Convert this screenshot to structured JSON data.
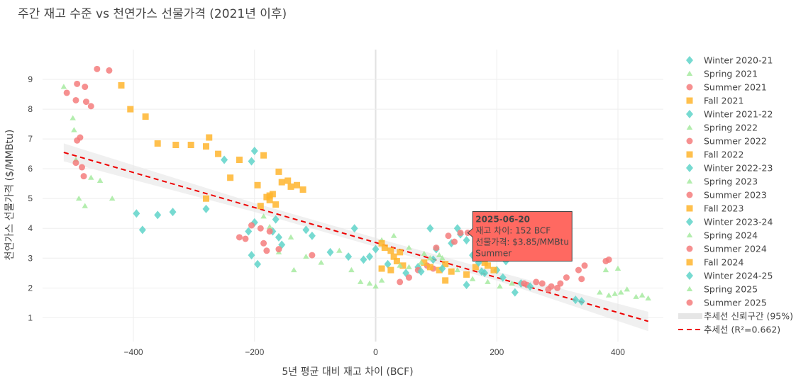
{
  "title": "주간 재고 수준 vs 천연가스 선물가격 (2021년 이후)",
  "chart_data": {
    "type": "scatter",
    "title": "주간 재고 수준 vs 천연가스 선물가격 (2021년 이후)",
    "xlabel": "5년 평균 대비 재고 차이 (BCF)",
    "ylabel": "천연가스 선물가격 ($/MMBtu)",
    "xlim": [
      -550,
      475
    ],
    "ylim": [
      0.2,
      10.0
    ],
    "x_ticks": [
      -400,
      -200,
      0,
      200,
      400
    ],
    "y_ticks": [
      1,
      2,
      3,
      4,
      5,
      6,
      7,
      8,
      9
    ],
    "x_tick_labels": [
      "−400",
      "−200",
      "0",
      "200",
      "400"
    ],
    "grid": true,
    "legend_position": "right",
    "season_styles": {
      "Winter": {
        "color": "#5fd3c9",
        "marker": "diamond"
      },
      "Spring": {
        "color": "#a6eaa0",
        "marker": "triangle"
      },
      "Summer": {
        "color": "#f47c7c",
        "marker": "circle"
      },
      "Fall": {
        "color": "#ffb52e",
        "marker": "square"
      }
    },
    "series": [
      {
        "name": "Winter 2020-21",
        "season": "Winter",
        "points": [
          [
            -395,
            4.5
          ],
          [
            -385,
            3.95
          ],
          [
            -360,
            4.45
          ],
          [
            -335,
            4.55
          ]
        ]
      },
      {
        "name": "Spring 2021",
        "season": "Spring",
        "points": [
          [
            -515,
            8.75
          ],
          [
            -500,
            7.7
          ],
          [
            -498,
            7.3
          ],
          [
            -495,
            6.3
          ],
          [
            -490,
            5.0
          ],
          [
            -480,
            4.75
          ],
          [
            -470,
            5.7
          ],
          [
            -455,
            5.6
          ],
          [
            -435,
            5.0
          ]
        ]
      },
      {
        "name": "Summer 2021",
        "season": "Summer",
        "points": [
          [
            -510,
            8.55
          ],
          [
            -495,
            8.3
          ],
          [
            -493,
            8.85
          ],
          [
            -480,
            8.75
          ],
          [
            -478,
            8.25
          ],
          [
            -470,
            8.1
          ],
          [
            -460,
            9.35
          ],
          [
            -440,
            9.3
          ],
          [
            -493,
            6.95
          ],
          [
            -488,
            7.05
          ],
          [
            -485,
            6.05
          ],
          [
            -482,
            5.75
          ],
          [
            -495,
            6.2
          ]
        ]
      },
      {
        "name": "Fall 2021",
        "season": "Fall",
        "points": [
          [
            -420,
            8.8
          ],
          [
            -405,
            8.0
          ],
          [
            -380,
            7.75
          ],
          [
            -360,
            6.85
          ],
          [
            -330,
            6.8
          ],
          [
            -305,
            6.8
          ],
          [
            -280,
            6.75
          ],
          [
            -275,
            7.05
          ],
          [
            -260,
            6.5
          ],
          [
            -240,
            5.7
          ],
          [
            -280,
            5.0
          ],
          [
            -225,
            6.3
          ],
          [
            -195,
            5.45
          ],
          [
            -190,
            4.75
          ]
        ]
      },
      {
        "name": "Winter 2021-22",
        "season": "Winter",
        "points": [
          [
            -280,
            4.65
          ],
          [
            -250,
            6.3
          ],
          [
            -205,
            6.25
          ],
          [
            -200,
            6.6
          ],
          [
            -200,
            4.2
          ],
          [
            -210,
            3.9
          ],
          [
            -205,
            3.1
          ],
          [
            -195,
            2.8
          ],
          [
            -170,
            3.9
          ],
          [
            -165,
            4.3
          ],
          [
            -160,
            3.7
          ],
          [
            -155,
            3.45
          ],
          [
            -115,
            3.95
          ],
          [
            -105,
            3.75
          ],
          [
            -75,
            3.2
          ],
          [
            -45,
            3.05
          ],
          [
            -35,
            4.0
          ],
          [
            -20,
            2.95
          ],
          [
            -10,
            3.05
          ]
        ]
      },
      {
        "name": "Spring 2022",
        "season": "Spring",
        "points": [
          [
            -185,
            4.4
          ],
          [
            -175,
            4.05
          ],
          [
            -160,
            3.2
          ],
          [
            -140,
            3.7
          ],
          [
            -115,
            3.05
          ],
          [
            -90,
            2.85
          ],
          [
            -60,
            3.25
          ],
          [
            -40,
            2.6
          ],
          [
            -25,
            2.2
          ],
          [
            -10,
            2.15
          ],
          [
            0,
            2.05
          ],
          [
            10,
            2.25
          ],
          [
            -135,
            2.6
          ]
        ]
      },
      {
        "name": "Summer 2022",
        "season": "Summer",
        "points": [
          [
            -225,
            3.7
          ],
          [
            -215,
            3.65
          ],
          [
            -205,
            4.1
          ],
          [
            -190,
            4.0
          ],
          [
            -185,
            3.5
          ],
          [
            -180,
            3.25
          ],
          [
            -175,
            3.9
          ],
          [
            -160,
            3.3
          ],
          [
            -105,
            3.1
          ]
        ]
      },
      {
        "name": "Fall 2022",
        "season": "Fall",
        "points": [
          [
            -185,
            6.45
          ],
          [
            -160,
            5.9
          ],
          [
            -155,
            5.55
          ],
          [
            -145,
            5.6
          ],
          [
            -140,
            5.4
          ],
          [
            -130,
            5.45
          ],
          [
            -120,
            5.3
          ],
          [
            -175,
            5.1
          ],
          [
            -170,
            5.15
          ],
          [
            -165,
            4.8
          ],
          [
            -180,
            5.05
          ],
          [
            -175,
            4.95
          ]
        ]
      },
      {
        "name": "Winter 2022-23",
        "season": "Winter",
        "points": [
          [
            0,
            3.3
          ],
          [
            20,
            2.8
          ],
          [
            50,
            2.5
          ],
          [
            70,
            2.7
          ],
          [
            90,
            4.0
          ],
          [
            100,
            3.3
          ],
          [
            125,
            3.5
          ],
          [
            135,
            4.0
          ],
          [
            150,
            2.1
          ],
          [
            175,
            2.55
          ],
          [
            200,
            2.6
          ],
          [
            215,
            2.9
          ],
          [
            230,
            1.85
          ]
        ]
      },
      {
        "name": "Spring 2023",
        "season": "Spring",
        "points": [
          [
            10,
            3.6
          ],
          [
            30,
            3.75
          ],
          [
            55,
            3.35
          ],
          [
            80,
            3.15
          ],
          [
            110,
            3.0
          ],
          [
            135,
            2.6
          ],
          [
            160,
            2.3
          ],
          [
            185,
            2.2
          ],
          [
            205,
            2.05
          ],
          [
            225,
            2.15
          ]
        ]
      },
      {
        "name": "Summer 2023",
        "season": "Summer",
        "points": [
          [
            40,
            2.2
          ],
          [
            55,
            2.35
          ],
          [
            70,
            2.6
          ],
          [
            85,
            2.75
          ],
          [
            95,
            2.65
          ],
          [
            130,
            3.55
          ],
          [
            250,
            2.1
          ],
          [
            265,
            2.2
          ],
          [
            275,
            2.15
          ],
          [
            290,
            2.05
          ]
        ]
      },
      {
        "name": "Fall 2023",
        "season": "Fall",
        "points": [
          [
            10,
            3.5
          ],
          [
            15,
            3.35
          ],
          [
            25,
            3.25
          ],
          [
            30,
            3.05
          ],
          [
            35,
            2.9
          ],
          [
            40,
            3.2
          ],
          [
            45,
            2.75
          ],
          [
            10,
            2.65
          ],
          [
            25,
            2.6
          ],
          [
            80,
            2.85
          ],
          [
            90,
            2.7
          ],
          [
            105,
            2.6
          ],
          [
            115,
            2.8
          ],
          [
            115,
            2.25
          ],
          [
            125,
            2.55
          ],
          [
            150,
            2.45
          ],
          [
            165,
            2.7
          ],
          [
            180,
            2.85
          ]
        ]
      },
      {
        "name": "Winter 2023-24",
        "season": "Winter",
        "points": [
          [
            140,
            3.8
          ],
          [
            150,
            3.6
          ],
          [
            160,
            3.1
          ],
          [
            170,
            2.85
          ],
          [
            180,
            2.5
          ],
          [
            210,
            2.35
          ],
          [
            240,
            2.15
          ],
          [
            255,
            2.05
          ]
        ]
      },
      {
        "name": "Spring 2024",
        "season": "Spring",
        "points": [
          [
            370,
            1.85
          ],
          [
            385,
            1.75
          ],
          [
            395,
            1.8
          ],
          [
            405,
            1.85
          ],
          [
            415,
            1.95
          ],
          [
            430,
            1.7
          ],
          [
            440,
            1.75
          ],
          [
            450,
            1.65
          ],
          [
            380,
            2.6
          ],
          [
            400,
            2.65
          ]
        ]
      },
      {
        "name": "Summer 2024",
        "season": "Summer",
        "points": [
          [
            285,
            1.95
          ],
          [
            300,
            2.0
          ],
          [
            305,
            2.15
          ],
          [
            315,
            2.35
          ],
          [
            335,
            2.6
          ],
          [
            345,
            2.75
          ],
          [
            380,
            2.9
          ],
          [
            385,
            2.95
          ],
          [
            340,
            2.3
          ],
          [
            245,
            2.15
          ]
        ]
      },
      {
        "name": "Fall 2024",
        "season": "Fall",
        "points": [
          [
            185,
            2.75
          ],
          [
            195,
            2.6
          ]
        ]
      },
      {
        "name": "Winter 2024-25",
        "season": "Winter",
        "points": [
          [
            75,
            2.55
          ],
          [
            95,
            2.95
          ],
          [
            110,
            2.65
          ],
          [
            330,
            1.6
          ],
          [
            340,
            1.55
          ]
        ]
      },
      {
        "name": "Spring 2025",
        "season": "Spring",
        "points": [
          [
            40,
            2.75
          ],
          [
            55,
            2.7
          ],
          [
            75,
            2.85
          ],
          [
            90,
            3.0
          ],
          [
            105,
            3.1
          ]
        ]
      },
      {
        "name": "Summer 2025",
        "season": "Summer",
        "points": [
          [
            100,
            3.35
          ],
          [
            120,
            3.75
          ],
          [
            140,
            3.85
          ],
          [
            152,
            3.85
          ],
          [
            165,
            3.55
          ]
        ]
      }
    ],
    "trendline": {
      "name": "추세선 (R²=0.662)",
      "x": [
        -515,
        450
      ],
      "y": [
        6.55,
        0.88
      ],
      "color": "#ee0000"
    },
    "confidence_band": {
      "name": "추세선 신뢰구간 (95%)",
      "x": [
        -515,
        -200,
        0,
        200,
        450
      ],
      "y_upper": [
        6.85,
        4.85,
        3.68,
        2.55,
        1.2
      ],
      "y_lower": [
        6.25,
        4.55,
        3.38,
        2.25,
        0.55
      ],
      "color": "#e6e6e6"
    },
    "tooltip": {
      "anchor_x": 152,
      "anchor_y": 3.85,
      "date": "2025-06-20",
      "line1": "재고 차이: 152 BCF",
      "line2": "선물가격: $3.85/MMBtu",
      "line3": "Summer",
      "bg_color": "#ff6961"
    },
    "legend": [
      "Winter 2020-21",
      "Spring 2021",
      "Summer 2021",
      "Fall 2021",
      "Winter 2021-22",
      "Spring 2022",
      "Summer 2022",
      "Fall 2022",
      "Winter 2022-23",
      "Spring 2023",
      "Summer 2023",
      "Fall 2023",
      "Winter 2023-24",
      "Spring 2024",
      "Summer 2024",
      "Fall 2024",
      "Winter 2024-25",
      "Spring 2025",
      "Summer 2025",
      "추세선 신뢰구간 (95%)",
      "추세선 (R²=0.662)"
    ]
  }
}
